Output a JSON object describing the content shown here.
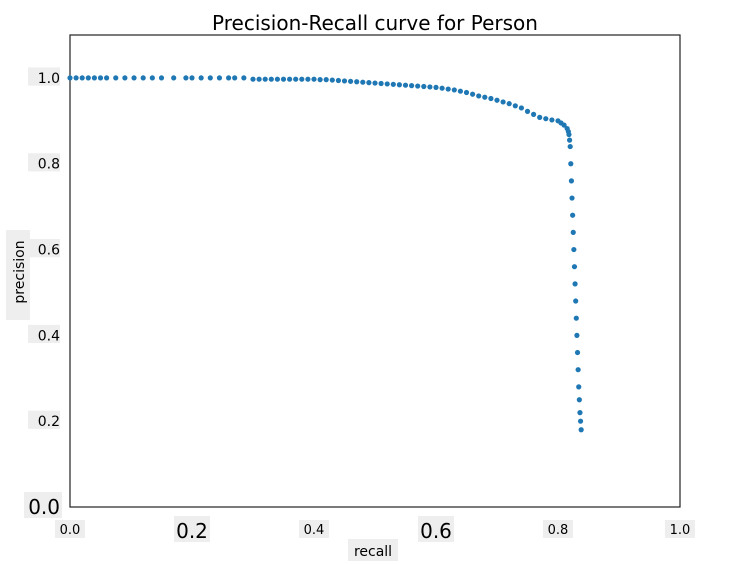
{
  "chart_data": {
    "type": "scatter",
    "title": "Precision-Recall curve for Person",
    "xlabel": "recall",
    "ylabel": "precision",
    "xlim": [
      0.0,
      1.0
    ],
    "ylim": [
      0.0,
      1.1
    ],
    "grid": false,
    "legend": "none",
    "xticks": [
      {
        "value": 0.0,
        "label": "0.0"
      },
      {
        "value": 0.2,
        "label": "0.2"
      },
      {
        "value": 0.4,
        "label": "0.4"
      },
      {
        "value": 0.6,
        "label": "0.6"
      },
      {
        "value": 0.8,
        "label": "0.8"
      },
      {
        "value": 1.0,
        "label": "1.0"
      }
    ],
    "yticks": [
      {
        "value": 0.0,
        "label": "0.0"
      },
      {
        "value": 0.2,
        "label": "0.2"
      },
      {
        "value": 0.4,
        "label": "0.4"
      },
      {
        "value": 0.6,
        "label": "0.6"
      },
      {
        "value": 0.8,
        "label": "0.8"
      },
      {
        "value": 1.0,
        "label": "1.0"
      }
    ],
    "marker_color": "#1f77b4",
    "series": [
      {
        "x": [
          0.0,
          0.01,
          0.02,
          0.03,
          0.04,
          0.05,
          0.06,
          0.075,
          0.09,
          0.105,
          0.12,
          0.135,
          0.15,
          0.17,
          0.19,
          0.2,
          0.215,
          0.23,
          0.245,
          0.26,
          0.27,
          0.285,
          0.3,
          0.31,
          0.32,
          0.33,
          0.34,
          0.35,
          0.36,
          0.37,
          0.38,
          0.39,
          0.4,
          0.41,
          0.42,
          0.43,
          0.44,
          0.45,
          0.46,
          0.47,
          0.48,
          0.49,
          0.5,
          0.51,
          0.52,
          0.53,
          0.54,
          0.55,
          0.56,
          0.57,
          0.58,
          0.59,
          0.6,
          0.61,
          0.62,
          0.63,
          0.64,
          0.65,
          0.66,
          0.67,
          0.68,
          0.69,
          0.7,
          0.71,
          0.72,
          0.73,
          0.74,
          0.75,
          0.76,
          0.77,
          0.78,
          0.79,
          0.8,
          0.805,
          0.81,
          0.815,
          0.817,
          0.818,
          0.819,
          0.82,
          0.821,
          0.822,
          0.823,
          0.824,
          0.825,
          0.826,
          0.827,
          0.828,
          0.829,
          0.83,
          0.831,
          0.832,
          0.833,
          0.834,
          0.835,
          0.836,
          0.837,
          0.838
        ],
        "y": [
          1.0,
          1.0,
          1.0,
          1.0,
          1.0,
          1.0,
          1.0,
          1.0,
          1.0,
          1.0,
          1.0,
          1.0,
          1.0,
          1.0,
          1.0,
          1.0,
          1.0,
          1.0,
          1.0,
          1.0,
          1.0,
          1.0,
          0.997,
          0.997,
          0.997,
          0.997,
          0.997,
          0.997,
          0.997,
          0.997,
          0.997,
          0.997,
          0.997,
          0.996,
          0.996,
          0.995,
          0.994,
          0.993,
          0.992,
          0.991,
          0.99,
          0.989,
          0.988,
          0.987,
          0.986,
          0.985,
          0.984,
          0.983,
          0.982,
          0.981,
          0.98,
          0.979,
          0.978,
          0.976,
          0.974,
          0.972,
          0.969,
          0.966,
          0.962,
          0.958,
          0.955,
          0.952,
          0.948,
          0.944,
          0.94,
          0.935,
          0.93,
          0.922,
          0.915,
          0.908,
          0.905,
          0.902,
          0.9,
          0.895,
          0.89,
          0.882,
          0.875,
          0.868,
          0.855,
          0.84,
          0.8,
          0.76,
          0.72,
          0.68,
          0.64,
          0.6,
          0.56,
          0.52,
          0.48,
          0.44,
          0.4,
          0.36,
          0.32,
          0.28,
          0.25,
          0.22,
          0.2,
          0.18
        ]
      }
    ]
  }
}
